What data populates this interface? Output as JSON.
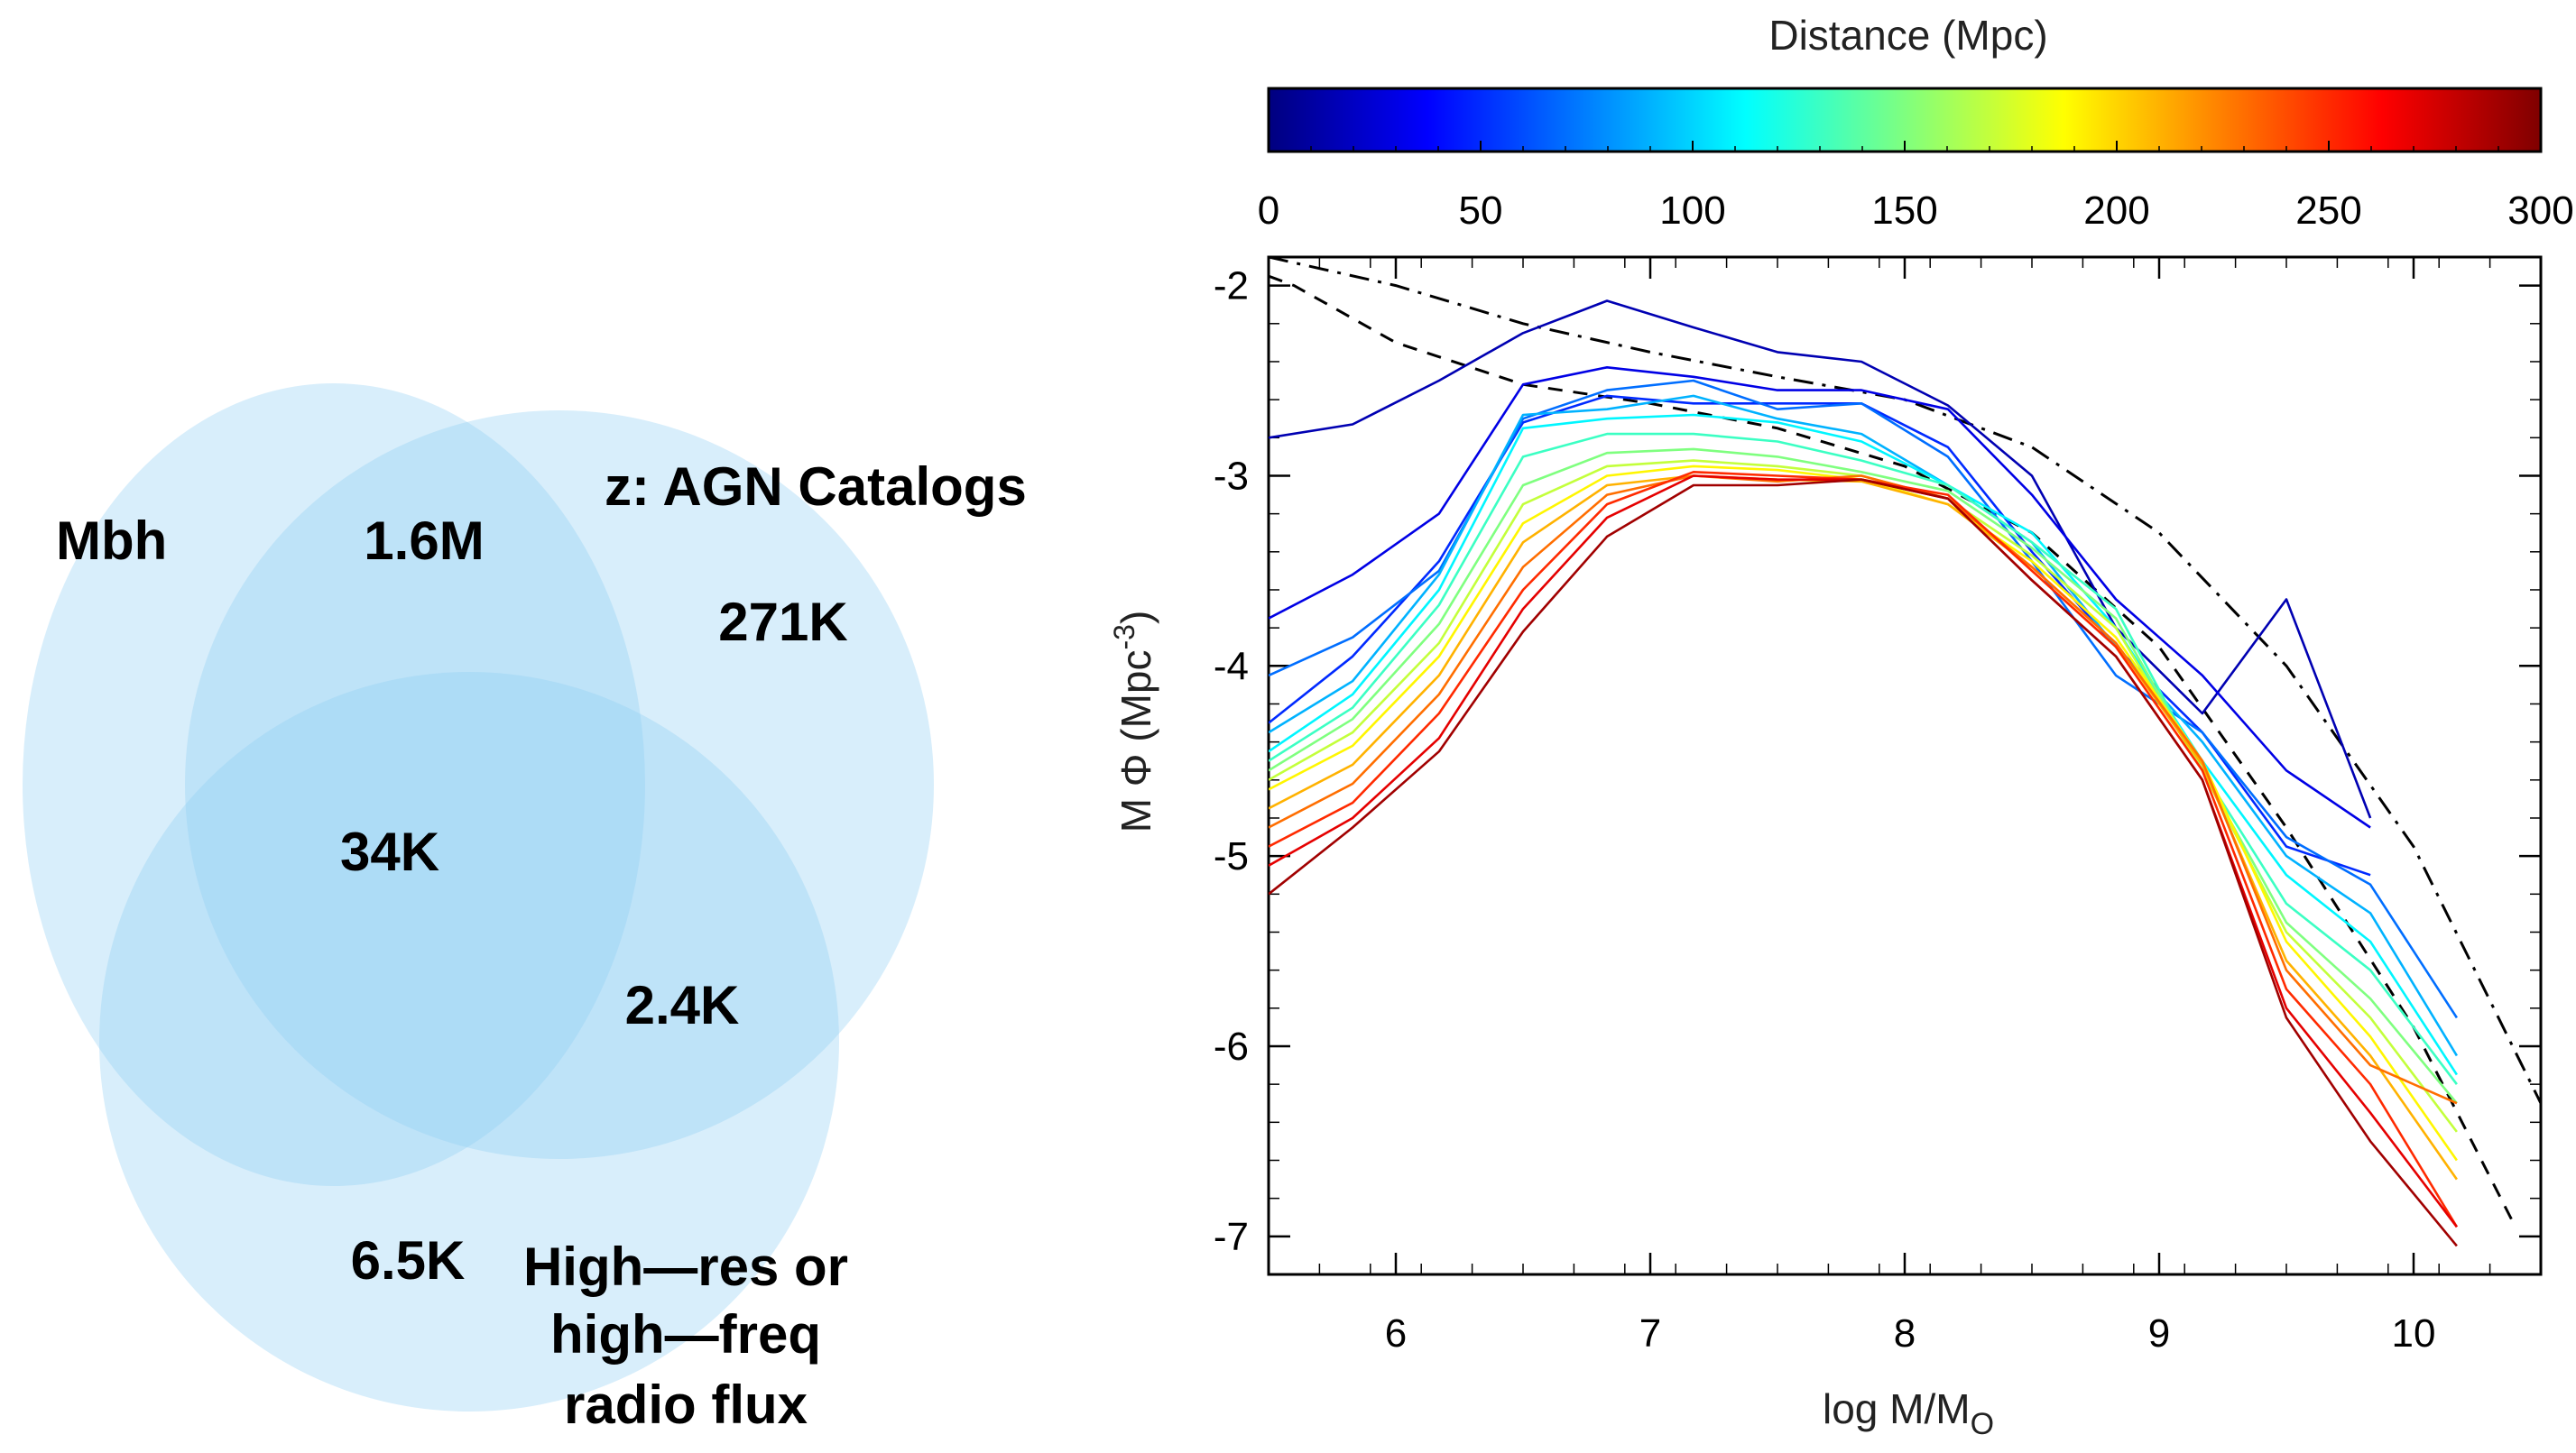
{
  "venn": {
    "colors": {
      "fill": "#90cdf4",
      "single": "#d6ebf9"
    },
    "sets": [
      {
        "name": "Mbh"
      },
      {
        "name": "z: AGN Catalogs"
      },
      {
        "name_lines": [
          "High—res or",
          "high—freq",
          "radio flux"
        ]
      }
    ],
    "regions": {
      "mbh_and_z": "1.6M",
      "z_only": "271K",
      "all_three": "34K",
      "z_and_radio": "2.4K",
      "radio_region": "6.5K"
    }
  },
  "chart_data": {
    "type": "line",
    "xlabel": "log M/M",
    "xlabel_sub": "O",
    "ylabel": "M Φ (Mpc",
    "ylabel_sup": "-3",
    "ylabel_close": ")",
    "xlim": [
      5.5,
      10.5
    ],
    "ylim": [
      -7.2,
      -1.85
    ],
    "xticks": [
      6,
      7,
      8,
      9,
      10
    ],
    "yticks": [
      -2,
      -3,
      -4,
      -5,
      -6,
      -7
    ],
    "colorbar": {
      "title": "Distance (Mpc)",
      "range": [
        0,
        300
      ],
      "ticks": [
        0,
        50,
        100,
        150,
        200,
        250,
        300
      ],
      "stops": [
        "#00007f",
        "#0000ff",
        "#007fff",
        "#00ffff",
        "#7fff7f",
        "#ffff00",
        "#ff7f00",
        "#ff0000",
        "#7f0000"
      ]
    },
    "reference_curves": [
      {
        "name": "dashed",
        "style": "dashed",
        "points": [
          [
            5.5,
            -1.95
          ],
          [
            5.6,
            -2.0
          ],
          [
            6.0,
            -2.3
          ],
          [
            6.5,
            -2.52
          ],
          [
            7.0,
            -2.62
          ],
          [
            7.5,
            -2.75
          ],
          [
            8.0,
            -2.95
          ],
          [
            8.5,
            -3.3
          ],
          [
            9.0,
            -3.9
          ],
          [
            9.5,
            -4.85
          ],
          [
            10.0,
            -5.9
          ],
          [
            10.4,
            -6.95
          ]
        ]
      },
      {
        "name": "dash-dot",
        "style": "dashdot",
        "points": [
          [
            5.5,
            -1.85
          ],
          [
            6.0,
            -2.0
          ],
          [
            6.5,
            -2.2
          ],
          [
            7.0,
            -2.35
          ],
          [
            7.5,
            -2.48
          ],
          [
            8.0,
            -2.6
          ],
          [
            8.5,
            -2.85
          ],
          [
            9.0,
            -3.3
          ],
          [
            9.5,
            -4.0
          ],
          [
            10.0,
            -4.95
          ],
          [
            10.5,
            -6.3
          ]
        ]
      }
    ],
    "series": [
      {
        "distance": 15,
        "x": [
          5.5,
          5.83,
          6.17,
          6.5,
          6.83,
          7.17,
          7.5,
          7.83,
          8.17,
          8.5,
          8.83,
          9.17,
          9.5,
          9.83
        ],
        "y": [
          -2.8,
          -2.73,
          -2.5,
          -2.25,
          -2.08,
          -2.22,
          -2.35,
          -2.4,
          -2.63,
          -3.0,
          -3.8,
          -4.25,
          -3.65,
          -4.8
        ]
      },
      {
        "distance": 30,
        "x": [
          5.5,
          5.83,
          6.17,
          6.5,
          6.83,
          7.17,
          7.5,
          7.83,
          8.17,
          8.5,
          8.83,
          9.17,
          9.5,
          9.83
        ],
        "y": [
          -3.75,
          -3.52,
          -3.2,
          -2.52,
          -2.43,
          -2.48,
          -2.55,
          -2.55,
          -2.65,
          -3.1,
          -3.65,
          -4.05,
          -4.55,
          -4.85
        ]
      },
      {
        "distance": 50,
        "x": [
          5.5,
          5.83,
          6.17,
          6.5,
          6.83,
          7.17,
          7.5,
          7.83,
          8.17,
          8.5,
          8.83,
          9.17,
          9.5,
          9.83
        ],
        "y": [
          -4.3,
          -3.95,
          -3.45,
          -2.72,
          -2.58,
          -2.62,
          -2.62,
          -2.62,
          -2.85,
          -3.4,
          -3.9,
          -4.35,
          -4.95,
          -5.1
        ]
      },
      {
        "distance": 70,
        "x": [
          5.5,
          5.83,
          6.17,
          6.5,
          6.83,
          7.17,
          7.5,
          7.83,
          8.17,
          8.5,
          8.83,
          9.17,
          9.5,
          9.83,
          10.17
        ],
        "y": [
          -4.05,
          -3.85,
          -3.5,
          -2.7,
          -2.55,
          -2.5,
          -2.65,
          -2.62,
          -2.9,
          -3.45,
          -4.05,
          -4.35,
          -4.9,
          -5.15,
          -5.85
        ]
      },
      {
        "distance": 90,
        "x": [
          5.5,
          5.83,
          6.17,
          6.5,
          6.83,
          7.17,
          7.5,
          7.83,
          8.17,
          8.5,
          8.83,
          9.17,
          9.5,
          9.83,
          10.17
        ],
        "y": [
          -4.35,
          -4.08,
          -3.52,
          -2.68,
          -2.65,
          -2.58,
          -2.7,
          -2.78,
          -3.05,
          -3.35,
          -3.9,
          -4.4,
          -5.0,
          -5.3,
          -6.05
        ]
      },
      {
        "distance": 110,
        "x": [
          5.5,
          5.83,
          6.17,
          6.5,
          6.83,
          7.17,
          7.5,
          7.83,
          8.17,
          8.5,
          8.83,
          9.17,
          9.5,
          9.83,
          10.17
        ],
        "y": [
          -4.45,
          -4.15,
          -3.6,
          -2.75,
          -2.7,
          -2.68,
          -2.72,
          -2.82,
          -3.05,
          -3.3,
          -3.8,
          -4.5,
          -5.1,
          -5.45,
          -6.15
        ]
      },
      {
        "distance": 130,
        "x": [
          5.5,
          5.83,
          6.17,
          6.5,
          6.83,
          7.17,
          7.5,
          7.83,
          8.17,
          8.5,
          8.83,
          9.17,
          9.5,
          9.83,
          10.17
        ],
        "y": [
          -4.5,
          -4.22,
          -3.68,
          -2.9,
          -2.78,
          -2.78,
          -2.82,
          -2.92,
          -3.05,
          -3.35,
          -3.7,
          -4.55,
          -5.25,
          -5.6,
          -6.2
        ]
      },
      {
        "distance": 150,
        "x": [
          5.5,
          5.83,
          6.17,
          6.5,
          6.83,
          7.17,
          7.5,
          7.83,
          8.17,
          8.5,
          8.83,
          9.17,
          9.5,
          9.83,
          10.17
        ],
        "y": [
          -4.55,
          -4.28,
          -3.78,
          -3.05,
          -2.88,
          -2.86,
          -2.9,
          -2.98,
          -3.08,
          -3.38,
          -3.75,
          -4.55,
          -5.35,
          -5.75,
          -6.3
        ]
      },
      {
        "distance": 170,
        "x": [
          5.5,
          5.83,
          6.17,
          6.5,
          6.83,
          7.17,
          7.5,
          7.83,
          8.17,
          8.5,
          8.83,
          9.17,
          9.5,
          9.83,
          10.17
        ],
        "y": [
          -4.6,
          -4.35,
          -3.88,
          -3.15,
          -2.95,
          -2.92,
          -2.95,
          -3.0,
          -3.12,
          -3.42,
          -3.8,
          -4.55,
          -5.4,
          -5.85,
          -6.45
        ]
      },
      {
        "distance": 190,
        "x": [
          5.5,
          5.83,
          6.17,
          6.5,
          6.83,
          7.17,
          7.5,
          7.83,
          8.17,
          8.5,
          8.83,
          9.17,
          9.5,
          9.83,
          10.17
        ],
        "y": [
          -4.65,
          -4.42,
          -3.95,
          -3.25,
          -3.0,
          -2.95,
          -2.97,
          -3.02,
          -3.15,
          -3.45,
          -3.85,
          -4.5,
          -5.45,
          -5.95,
          -6.6
        ]
      },
      {
        "distance": 210,
        "x": [
          5.5,
          5.83,
          6.17,
          6.5,
          6.83,
          7.17,
          7.5,
          7.83,
          8.17,
          8.5,
          8.83,
          9.17,
          9.5,
          9.83,
          10.17
        ],
        "y": [
          -4.75,
          -4.52,
          -4.05,
          -3.35,
          -3.05,
          -3.0,
          -3.02,
          -3.03,
          -3.15,
          -3.48,
          -3.88,
          -4.52,
          -5.55,
          -6.05,
          -6.7
        ]
      },
      {
        "distance": 230,
        "x": [
          5.5,
          5.83,
          6.17,
          6.5,
          6.83,
          7.17,
          7.5,
          7.83,
          8.17,
          8.5,
          8.83,
          9.17,
          9.5,
          9.83,
          10.17
        ],
        "y": [
          -4.85,
          -4.62,
          -4.15,
          -3.48,
          -3.1,
          -3.0,
          -3.03,
          -3.0,
          -3.12,
          -3.48,
          -3.88,
          -4.5,
          -5.6,
          -6.1,
          -6.3
        ]
      },
      {
        "distance": 250,
        "x": [
          5.5,
          5.83,
          6.17,
          6.5,
          6.83,
          7.17,
          7.5,
          7.83,
          8.17,
          8.5,
          8.83,
          9.17,
          9.5,
          9.83,
          10.17
        ],
        "y": [
          -4.95,
          -4.72,
          -4.25,
          -3.6,
          -3.15,
          -2.98,
          -3.0,
          -3.02,
          -3.1,
          -3.5,
          -3.9,
          -4.55,
          -5.7,
          -6.2,
          -6.95
        ]
      },
      {
        "distance": 270,
        "x": [
          5.5,
          5.83,
          6.17,
          6.5,
          6.83,
          7.17,
          7.5,
          7.83,
          8.17,
          8.5,
          8.83,
          9.17,
          9.5,
          9.83,
          10.17
        ],
        "y": [
          -5.05,
          -4.8,
          -4.38,
          -3.7,
          -3.22,
          -3.0,
          -3.02,
          -3.02,
          -3.12,
          -3.55,
          -3.95,
          -4.6,
          -5.8,
          -6.35,
          -6.95
        ]
      },
      {
        "distance": 290,
        "x": [
          5.5,
          5.83,
          6.17,
          6.5,
          6.83,
          7.17,
          7.5,
          7.83,
          8.17,
          8.5,
          8.83,
          9.17,
          9.5,
          9.83,
          10.17
        ],
        "y": [
          -5.2,
          -4.85,
          -4.45,
          -3.82,
          -3.32,
          -3.05,
          -3.05,
          -3.02,
          -3.12,
          -3.55,
          -3.95,
          -4.6,
          -5.85,
          -6.5,
          -7.05
        ]
      }
    ]
  }
}
